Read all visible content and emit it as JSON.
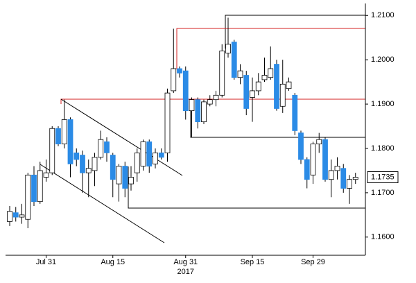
{
  "chart_data": {
    "type": "candlestick",
    "categories": [
      null,
      null,
      null,
      null,
      null,
      null,
      "Jul 31",
      null,
      null,
      null,
      null,
      null,
      null,
      null,
      null,
      null,
      null,
      "Aug 15",
      null,
      null,
      null,
      null,
      null,
      null,
      null,
      null,
      null,
      null,
      null,
      "Aug 31",
      null,
      null,
      null,
      null,
      null,
      null,
      null,
      null,
      null,
      null,
      "Sep 15",
      null,
      null,
      null,
      null,
      null,
      null,
      null,
      null,
      null,
      "Sep 29",
      null,
      null,
      null,
      null,
      null,
      null,
      null
    ],
    "x_sublabel": "2017",
    "open": [
      1.1635,
      1.1655,
      1.1645,
      1.164,
      1.174,
      1.168,
      1.1735,
      1.1745,
      1.1845,
      1.181,
      1.1865,
      1.179,
      1.1785,
      1.1745,
      1.175,
      1.178,
      1.1815,
      1.1785,
      1.172,
      1.176,
      1.172,
      1.1745,
      1.176,
      1.1815,
      1.1765,
      1.179,
      1.179,
      1.193,
      1.198,
      1.1975,
      1.1885,
      1.191,
      1.186,
      1.19,
      1.191,
      1.192,
      1.2015,
      1.204,
      1.196,
      1.1965,
      1.1915,
      1.193,
      1.1955,
      1.196,
      1.199,
      1.1895,
      1.1935,
      1.192,
      1.1835,
      1.1775,
      1.174,
      1.181,
      1.182,
      1.173,
      1.175,
      1.1755,
      1.171,
      1.173
    ],
    "high": [
      1.167,
      1.1668,
      1.1675,
      1.1745,
      1.176,
      1.177,
      1.1775,
      1.185,
      1.185,
      1.191,
      1.187,
      1.18,
      1.1795,
      1.1775,
      1.179,
      1.184,
      1.1825,
      1.179,
      1.1765,
      1.177,
      1.176,
      1.18,
      1.182,
      1.182,
      1.18,
      1.18,
      1.1935,
      1.207,
      1.1985,
      1.1985,
      1.1915,
      1.1915,
      1.191,
      1.192,
      1.193,
      1.2035,
      1.2095,
      1.2045,
      1.199,
      1.1975,
      1.196,
      1.197,
      1.2005,
      1.203,
      1.2,
      1.2,
      1.196,
      1.1925,
      1.184,
      1.178,
      1.1815,
      1.1835,
      1.1825,
      1.1775,
      1.178,
      1.1765,
      1.174,
      1.1745
    ],
    "low": [
      1.1625,
      1.1635,
      1.163,
      1.162,
      1.167,
      1.1675,
      1.1725,
      1.174,
      1.1805,
      1.18,
      1.1735,
      1.176,
      1.17,
      1.169,
      1.1715,
      1.1775,
      1.177,
      1.169,
      1.168,
      1.169,
      1.1705,
      1.1725,
      1.175,
      1.1745,
      1.1755,
      1.1775,
      1.177,
      1.1925,
      1.196,
      1.1865,
      1.1825,
      1.1845,
      1.1855,
      1.1895,
      1.1895,
      1.1915,
      1.2005,
      1.1955,
      1.1945,
      1.1875,
      1.186,
      1.192,
      1.195,
      1.1955,
      1.1885,
      1.188,
      1.193,
      1.183,
      1.1765,
      1.171,
      1.172,
      1.179,
      1.1725,
      1.169,
      1.173,
      1.17,
      1.1675,
      1.172
    ],
    "close": [
      1.1658,
      1.1645,
      1.165,
      1.174,
      1.168,
      1.175,
      1.1745,
      1.1845,
      1.181,
      1.1865,
      1.1765,
      1.1775,
      1.1745,
      1.1755,
      1.178,
      1.182,
      1.179,
      1.173,
      1.176,
      1.171,
      1.1735,
      1.179,
      1.1815,
      1.176,
      1.179,
      1.178,
      1.1925,
      1.198,
      1.197,
      1.1885,
      1.191,
      1.186,
      1.1905,
      1.191,
      1.192,
      1.202,
      1.2035,
      1.196,
      1.1975,
      1.189,
      1.193,
      1.195,
      1.1965,
      1.198,
      1.189,
      1.1945,
      1.195,
      1.184,
      1.1775,
      1.173,
      1.181,
      1.182,
      1.173,
      1.175,
      1.176,
      1.171,
      1.173,
      1.1735
    ],
    "up_color": "#ffffff",
    "down_color": "#2b8be6",
    "ylim": [
      1.1559,
      1.2127
    ],
    "yticks": [
      {
        "value": 1.16,
        "label": "1.1600"
      },
      {
        "value": 1.17,
        "label": "1.1700"
      },
      {
        "value": 1.18,
        "label": "1.1800"
      },
      {
        "value": 1.19,
        "label": "1.1900"
      },
      {
        "value": 1.2,
        "label": "1.2000"
      },
      {
        "value": 1.21,
        "label": "1.2100"
      }
    ],
    "last_price": {
      "value": 1.1735,
      "label": "1.1735"
    }
  }
}
